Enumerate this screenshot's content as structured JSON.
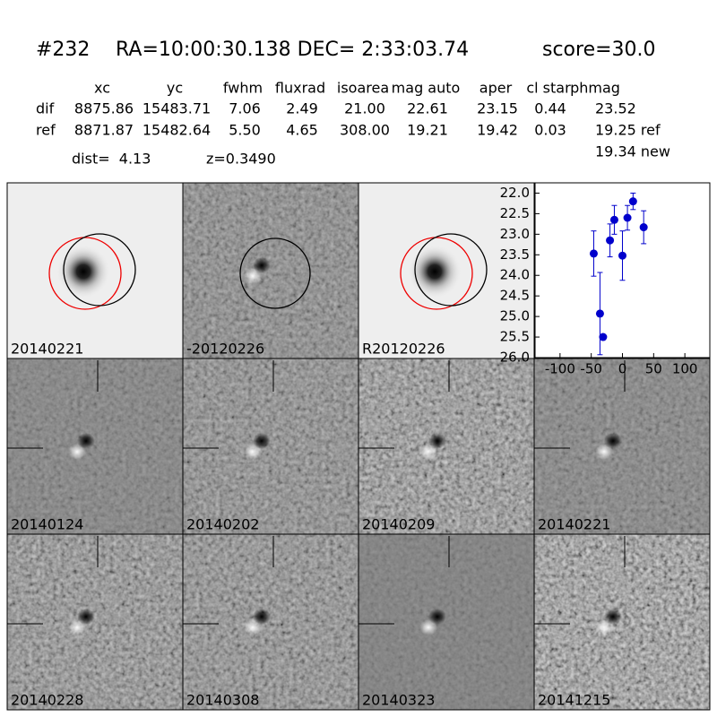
{
  "header": {
    "id": "#232",
    "coords": "RA=10:00:30.138 DEC= 2:33:03.74",
    "score": "score=30.0"
  },
  "table": {
    "columns": [
      "xc",
      "yc",
      "fwhm",
      "fluxrad",
      "isoarea",
      "mag auto",
      "aper",
      "cl star",
      "phmag"
    ],
    "rows": [
      {
        "label": "dif",
        "cells": [
          "8875.86",
          "15483.71",
          "7.06",
          "2.49",
          "21.00",
          "22.61",
          "23.15",
          "0.44",
          "23.52"
        ]
      },
      {
        "label": "ref",
        "cells": [
          "8871.87",
          "15482.64",
          "5.50",
          "4.65",
          "308.00",
          "19.21",
          "19.42",
          "0.03",
          "19.25 ref"
        ]
      }
    ],
    "extra": "19.34 new"
  },
  "dist": "dist=  4.13",
  "z": "z=0.3490",
  "stamps": [
    {
      "label": "20140221"
    },
    {
      "label": "-20120226"
    },
    {
      "label": "R20120226"
    },
    {
      "label": "20140124"
    },
    {
      "label": "20140202"
    },
    {
      "label": "20140209"
    },
    {
      "label": "20140221",
      "color": "#ff0000"
    },
    {
      "label": "20140228"
    },
    {
      "label": "20140308"
    },
    {
      "label": "20140323"
    },
    {
      "label": "20141215"
    }
  ],
  "chart_data": {
    "type": "scatter",
    "color": "#0000cc",
    "x": [
      -46,
      -36,
      -31,
      -20,
      -13,
      0,
      8,
      17,
      34
    ],
    "values": [
      23.47,
      24.93,
      25.5,
      23.15,
      22.65,
      23.52,
      22.6,
      22.2,
      22.83
    ],
    "errors": [
      0.55,
      1.0,
      0.05,
      0.4,
      0.35,
      0.6,
      0.3,
      0.2,
      0.4
    ],
    "xlim": [
      -140,
      140
    ],
    "ylim": [
      21.75,
      26
    ],
    "invert_y": true,
    "xticks": [
      -100,
      -50,
      0,
      50,
      100
    ],
    "yticks": [
      {
        "value": 22,
        "label": "22.0"
      },
      22.5,
      {
        "value": 23,
        "label": "23.0"
      },
      23.5,
      {
        "value": 24,
        "label": "24.0"
      },
      24.5,
      {
        "value": 25,
        "label": "25.0"
      },
      25.5,
      {
        "value": 26,
        "label": "26.0"
      }
    ]
  }
}
